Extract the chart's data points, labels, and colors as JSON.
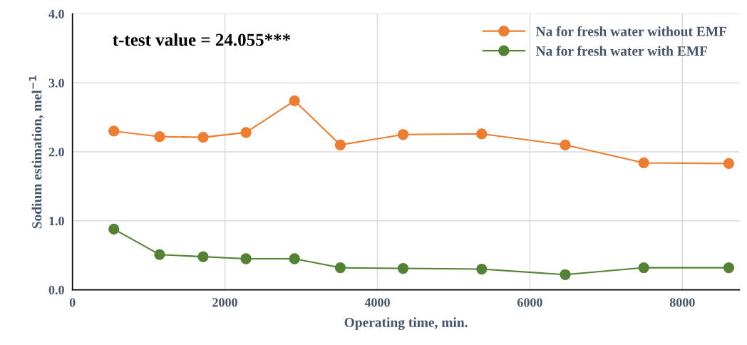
{
  "chart_data": {
    "type": "line",
    "xlabel": "Operating time, min.",
    "ylabel": "Sodium estimation, mel$^{−1}$",
    "x": [
      543,
      1143,
      1714,
      2276,
      2913,
      3513,
      4337,
      5368,
      6464,
      7494,
      8609
    ],
    "series": [
      {
        "name": "Na for fresh water without EMF",
        "color": "#ed7d31",
        "values": [
          2.3,
          2.22,
          2.21,
          2.28,
          2.74,
          2.1,
          2.25,
          2.26,
          2.1,
          1.84,
          1.83
        ]
      },
      {
        "name": "Na for fresh water with EMF",
        "color": "#548235",
        "values": [
          0.88,
          0.51,
          0.48,
          0.45,
          0.45,
          0.32,
          0.31,
          0.3,
          0.22,
          0.32,
          0.32
        ]
      }
    ],
    "xlim": [
      0,
      8750
    ],
    "xticks": [
      0,
      2000,
      4000,
      6000,
      8000
    ],
    "ylim": [
      0,
      4
    ],
    "yticks": [
      {
        "value": 0,
        "label": "0.0"
      },
      {
        "value": 1,
        "label": "1.0"
      },
      {
        "value": 2,
        "label": "2.0"
      },
      {
        "value": 3,
        "label": "3.0"
      },
      {
        "value": 4,
        "label": "4.0"
      }
    ],
    "annotations": [
      "t-test value = 24.055***"
    ],
    "grid": true,
    "legend": "top right",
    "marker": "circle",
    "line_style": "solid"
  }
}
